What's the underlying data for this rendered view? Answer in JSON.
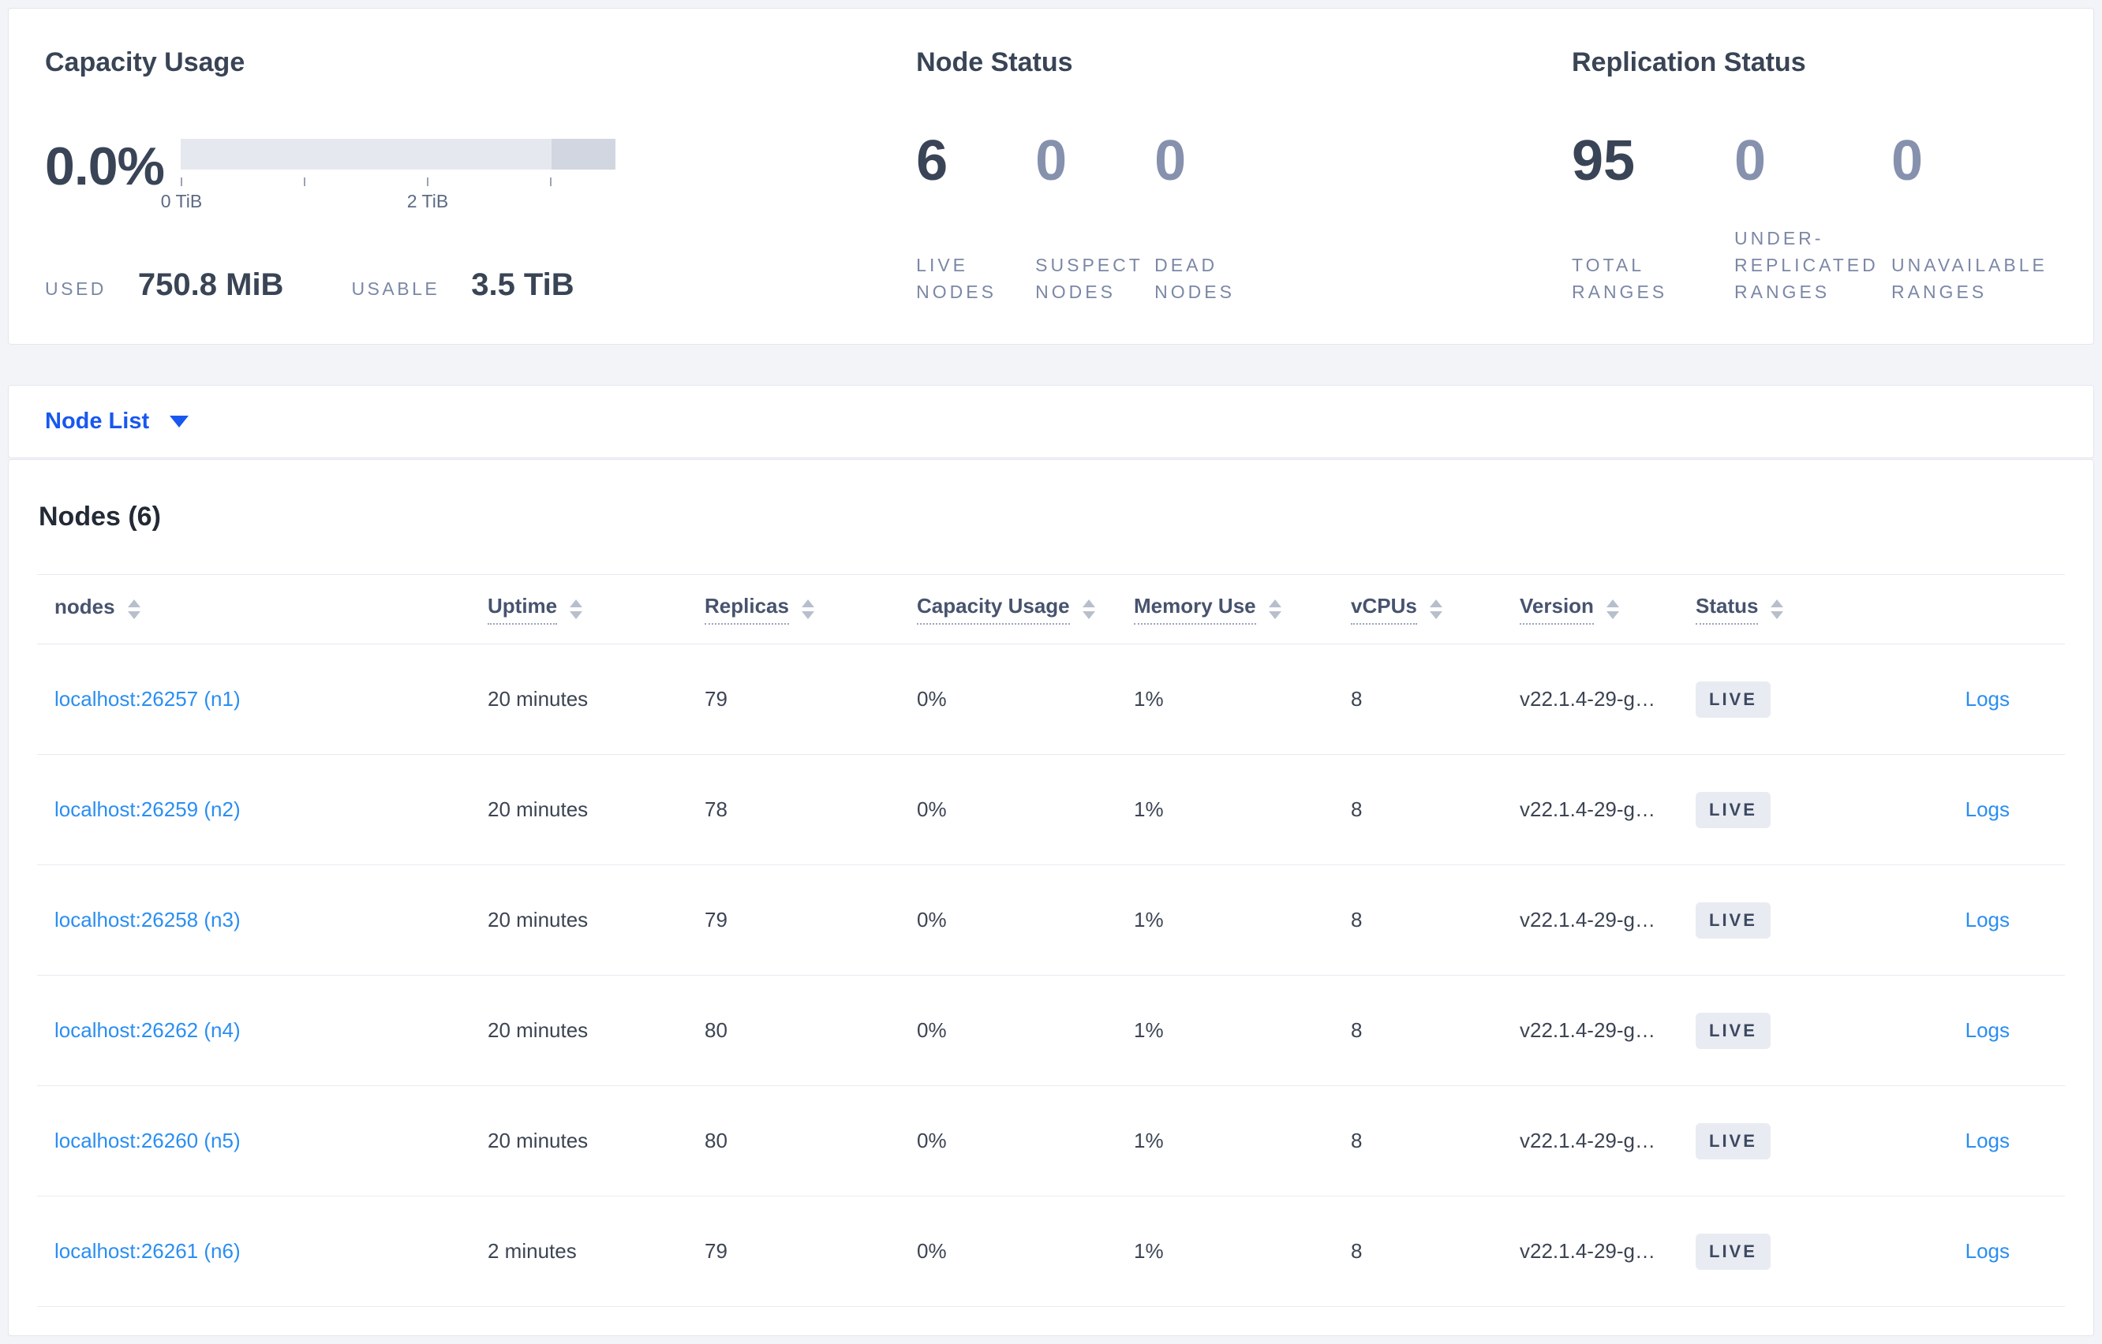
{
  "summary": {
    "capacity": {
      "title": "Capacity Usage",
      "percent": "0.0%",
      "bar": {
        "light_color": "#e6e8ef",
        "dark_color": "#d2d6e1",
        "tick_labels": [
          "0 TiB",
          "2 TiB"
        ]
      },
      "used_label": "USED",
      "used_value": "750.8 MiB",
      "usable_label": "USABLE",
      "usable_value": "3.5 TiB"
    },
    "node_status": {
      "title": "Node Status",
      "stats": [
        {
          "value": "6",
          "label": "LIVE NODES"
        },
        {
          "value": "0",
          "label": "SUSPECT NODES"
        },
        {
          "value": "0",
          "label": "DEAD NODES"
        }
      ]
    },
    "replication": {
      "title": "Replication Status",
      "stats": [
        {
          "value": "95",
          "label": "TOTAL RANGES"
        },
        {
          "value": "0",
          "label": "UNDER-REPLICATED RANGES"
        },
        {
          "value": "0",
          "label": "UNAVAILABLE RANGES"
        }
      ]
    }
  },
  "view_selector": {
    "label": "Node List"
  },
  "table": {
    "title": "Nodes (6)",
    "columns": [
      {
        "label": "nodes",
        "tooltip": false
      },
      {
        "label": "Uptime",
        "tooltip": true
      },
      {
        "label": "Replicas",
        "tooltip": true
      },
      {
        "label": "Capacity Usage",
        "tooltip": true
      },
      {
        "label": "Memory Use",
        "tooltip": true
      },
      {
        "label": "vCPUs",
        "tooltip": true
      },
      {
        "label": "Version",
        "tooltip": true
      },
      {
        "label": "Status",
        "tooltip": true
      }
    ],
    "rows": [
      {
        "node": "localhost:26257 (n1)",
        "uptime": "20 minutes",
        "replicas": "79",
        "capacity": "0%",
        "memory": "1%",
        "vcpus": "8",
        "version": "v22.1.4-29-g…",
        "status": "LIVE",
        "logs": "Logs"
      },
      {
        "node": "localhost:26259 (n2)",
        "uptime": "20 minutes",
        "replicas": "78",
        "capacity": "0%",
        "memory": "1%",
        "vcpus": "8",
        "version": "v22.1.4-29-g…",
        "status": "LIVE",
        "logs": "Logs"
      },
      {
        "node": "localhost:26258 (n3)",
        "uptime": "20 minutes",
        "replicas": "79",
        "capacity": "0%",
        "memory": "1%",
        "vcpus": "8",
        "version": "v22.1.4-29-g…",
        "status": "LIVE",
        "logs": "Logs"
      },
      {
        "node": "localhost:26262 (n4)",
        "uptime": "20 minutes",
        "replicas": "80",
        "capacity": "0%",
        "memory": "1%",
        "vcpus": "8",
        "version": "v22.1.4-29-g…",
        "status": "LIVE",
        "logs": "Logs"
      },
      {
        "node": "localhost:26260 (n5)",
        "uptime": "20 minutes",
        "replicas": "80",
        "capacity": "0%",
        "memory": "1%",
        "vcpus": "8",
        "version": "v22.1.4-29-g…",
        "status": "LIVE",
        "logs": "Logs"
      },
      {
        "node": "localhost:26261 (n6)",
        "uptime": "2 minutes",
        "replicas": "79",
        "capacity": "0%",
        "memory": "1%",
        "vcpus": "8",
        "version": "v22.1.4-29-g…",
        "status": "LIVE",
        "logs": "Logs"
      }
    ]
  },
  "colors": {
    "page_background": "#f2f4f8",
    "card_border": "#e3e6ee",
    "heading_text": "#394455",
    "muted_label": "#7b87a5",
    "stat_zero": "#8691ae",
    "node_link_blue": "#2a8ef2",
    "view_selector_blue": "#1857f0",
    "badge_background": "#e8ebf1",
    "bar_light": "#e6e8ef",
    "bar_dark": "#d2d6e1"
  }
}
